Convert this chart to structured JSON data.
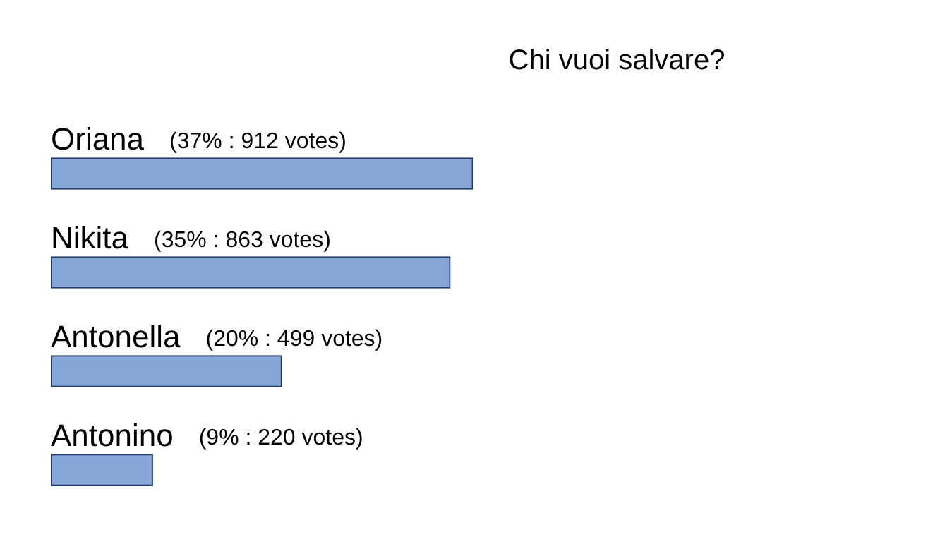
{
  "chart_data": {
    "type": "bar",
    "orientation": "horizontal",
    "title": "Chi vuoi salvare?",
    "categories": [
      "Oriana",
      "Nikita",
      "Antonella",
      "Antonino"
    ],
    "values": [
      912,
      863,
      499,
      220
    ],
    "value_labels": [
      "(37% : 912 votes)",
      "(35% : 863 votes)",
      "(20% : 499 votes)",
      "(9% : 220 votes)"
    ],
    "color": "#86a6d6",
    "legend": false
  }
}
